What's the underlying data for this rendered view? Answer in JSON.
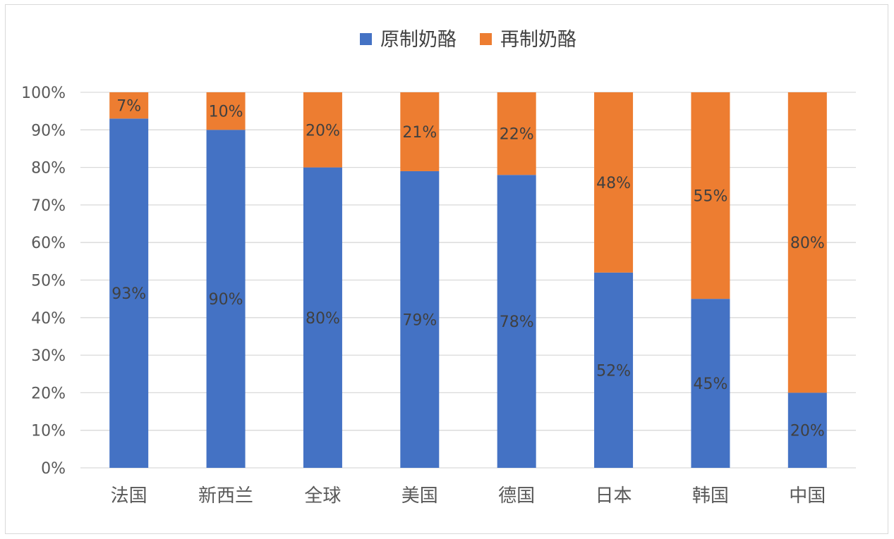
{
  "chart_data": {
    "type": "bar",
    "stacked": true,
    "percent_stacked": true,
    "categories": [
      "法国",
      "新西兰",
      "全球",
      "美国",
      "德国",
      "日本",
      "韩国",
      "中国"
    ],
    "series": [
      {
        "name": "原制奶酪",
        "color": "#4472c4",
        "values": [
          93,
          90,
          80,
          79,
          78,
          52,
          45,
          20
        ],
        "labels": [
          "93%",
          "90%",
          "80%",
          "79%",
          "78%",
          "52%",
          "45%",
          "20%"
        ]
      },
      {
        "name": "再制奶酪",
        "color": "#ed7d31",
        "values": [
          7,
          10,
          20,
          21,
          22,
          48,
          55,
          80
        ],
        "labels": [
          "7%",
          "10%",
          "20%",
          "21%",
          "22%",
          "48%",
          "55%",
          "80%"
        ]
      }
    ],
    "y_ticks": [
      "0%",
      "10%",
      "20%",
      "30%",
      "40%",
      "50%",
      "60%",
      "70%",
      "80%",
      "90%",
      "100%"
    ],
    "ylim": [
      0,
      100
    ],
    "grid": true,
    "legend_position": "top"
  }
}
